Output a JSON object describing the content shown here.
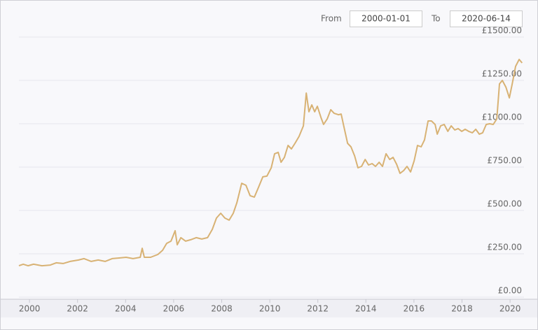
{
  "chart_data": {
    "type": "line",
    "range_selector": {
      "from_label": "From",
      "from": "2000-01-01",
      "to_label": "To",
      "to": "2020-06-14"
    },
    "x": [
      1999.56,
      1999.74,
      1999.94,
      2000.17,
      2000.52,
      2000.87,
      2001.11,
      2001.4,
      2001.69,
      2002.04,
      2002.27,
      2002.57,
      2002.86,
      2003.15,
      2003.44,
      2003.73,
      2004.02,
      2004.31,
      2004.61,
      2004.69,
      2004.78,
      2005.04,
      2005.34,
      2005.54,
      2005.71,
      2005.89,
      2006.06,
      2006.15,
      2006.3,
      2006.5,
      2006.71,
      2006.94,
      2007.17,
      2007.41,
      2007.61,
      2007.78,
      2007.96,
      2008.13,
      2008.31,
      2008.48,
      2008.63,
      2008.83,
      2009.01,
      2009.18,
      2009.36,
      2009.53,
      2009.71,
      2009.88,
      2010.06,
      2010.2,
      2010.35,
      2010.47,
      2010.61,
      2010.76,
      2010.9,
      2011.05,
      2011.22,
      2011.4,
      2011.52,
      2011.63,
      2011.75,
      2011.87,
      2011.98,
      2012.13,
      2012.24,
      2012.39,
      2012.54,
      2012.68,
      2012.86,
      2012.97,
      2013.09,
      2013.24,
      2013.38,
      2013.53,
      2013.67,
      2013.82,
      2013.97,
      2014.11,
      2014.26,
      2014.4,
      2014.55,
      2014.69,
      2014.84,
      2014.99,
      2015.13,
      2015.28,
      2015.42,
      2015.57,
      2015.71,
      2015.86,
      2016.01,
      2016.15,
      2016.3,
      2016.44,
      2016.59,
      2016.73,
      2016.88,
      2016.97,
      2017.11,
      2017.26,
      2017.41,
      2017.55,
      2017.7,
      2017.84,
      2017.99,
      2018.13,
      2018.28,
      2018.43,
      2018.57,
      2018.72,
      2018.86,
      2019.01,
      2019.15,
      2019.3,
      2019.45,
      2019.56,
      2019.68,
      2019.83,
      2019.97,
      2020.09,
      2020.23,
      2020.38,
      2020.5
    ],
    "series": [
      {
        "color": "#d8b274",
        "values": [
          181,
          190,
          181,
          190,
          181,
          185,
          198,
          194,
          206,
          214,
          222,
          206,
          214,
          206,
          222,
          226,
          230,
          222,
          230,
          282,
          230,
          230,
          246,
          270,
          310,
          323,
          383,
          302,
          343,
          323,
          331,
          343,
          335,
          343,
          391,
          456,
          484,
          456,
          444,
          484,
          544,
          657,
          645,
          585,
          577,
          633,
          694,
          698,
          746,
          827,
          835,
          778,
          806,
          875,
          855,
          887,
          927,
          988,
          1177,
          1069,
          1109,
          1069,
          1101,
          1036,
          996,
          1028,
          1081,
          1060,
          1052,
          1056,
          980,
          887,
          867,
          815,
          746,
          754,
          794,
          762,
          770,
          754,
          778,
          754,
          827,
          794,
          806,
          766,
          714,
          730,
          754,
          722,
          786,
          875,
          867,
          907,
          1016,
          1016,
          996,
          940,
          988,
          996,
          956,
          988,
          964,
          972,
          956,
          968,
          956,
          948,
          968,
          940,
          948,
          996,
          1000,
          996,
          1028,
          1230,
          1250,
          1210,
          1149,
          1230,
          1331,
          1371,
          1351
        ]
      }
    ],
    "xlim": [
      1999.56,
      2020.58
    ],
    "xticks": [
      2000,
      2002,
      2004,
      2006,
      2008,
      2010,
      2012,
      2014,
      2016,
      2018,
      2020
    ],
    "ylim": [
      0,
      1500
    ],
    "yticks": [
      {
        "value": 0,
        "label": "£0.00"
      },
      {
        "value": 250,
        "label": "£250.00"
      },
      {
        "value": 500,
        "label": "£500.00"
      },
      {
        "value": 750,
        "label": "£750.00"
      },
      {
        "value": 1000,
        "label": "£1000.00"
      },
      {
        "value": 1250,
        "label": "£1250.00"
      },
      {
        "value": 1500,
        "label": "£1500.00"
      }
    ],
    "grid": true
  }
}
